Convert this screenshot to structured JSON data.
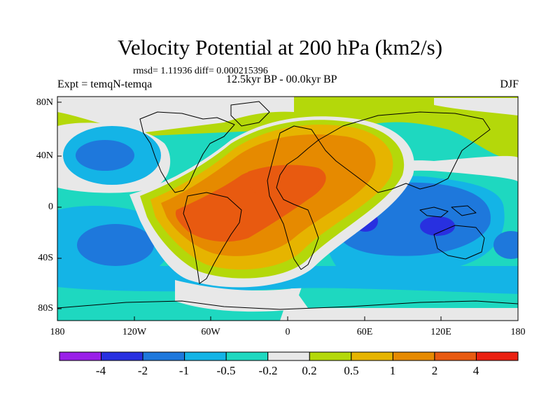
{
  "header": {
    "title": "Velocity Potential at 200 hPa (km2/s)",
    "stats": "rmsd= 1.11936 diff= 0.000215396",
    "period": "12.5kyr BP - 00.0kyr BP",
    "experiment": "Expt = temqN-temqa",
    "season": "DJF"
  },
  "axes": {
    "y_ticks": [
      "80N",
      "40N",
      "0",
      "40S",
      "80S"
    ],
    "x_ticks": [
      "180",
      "120W",
      "60W",
      "0",
      "60E",
      "120E",
      "180"
    ]
  },
  "colorbar": {
    "labels": [
      "-4",
      "-2",
      "-1",
      "-0.5",
      "-0.2",
      "0.2",
      "0.5",
      "1",
      "2",
      "4"
    ],
    "colors": [
      "#9a20e8",
      "#2830e0",
      "#1e78dc",
      "#14b4e6",
      "#1ed8c0",
      "#e8e8e8",
      "#b4d80a",
      "#e6b400",
      "#e68a00",
      "#e85a10",
      "#ea2010"
    ]
  },
  "colors": {
    "background": "#ffffff",
    "coast": "#000000"
  }
}
